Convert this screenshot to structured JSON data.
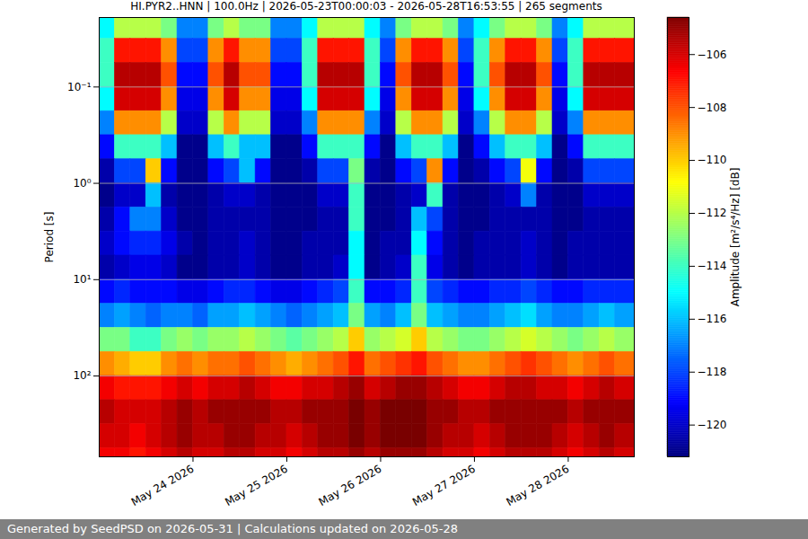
{
  "chart_data": {
    "type": "heatmap",
    "title": "HI.PYR2..HNN | 100.0Hz | 2026-05-23T00:00:03 - 2026-05-28T16:53:55 | 265 segments",
    "caption": "Generated by SeedPSD on 2026-05-31 | Calculations updated on 2026-05-28",
    "ylabel": "Period [s]",
    "zlabel": "Amplitude [m²/s⁴/Hz] [dB]",
    "log": "y",
    "grid": true,
    "xlim": [
      "2026-05-23T00:00:03Z",
      "2026-05-28T16:53:55Z"
    ],
    "xticks": [
      {
        "value": "2026-05-24T00:00Z",
        "label": "May 24 2026"
      },
      {
        "value": "2026-05-25T00:00Z",
        "label": "May 25 2026"
      },
      {
        "value": "2026-05-26T00:00Z",
        "label": "May 26 2026"
      },
      {
        "value": "2026-05-27T00:00Z",
        "label": "May 27 2026"
      },
      {
        "value": "2026-05-28T00:00Z",
        "label": "May 28 2026"
      }
    ],
    "ylim": [
      0.019,
      690
    ],
    "yticks": [
      {
        "value": 0.1,
        "label": "10⁻¹"
      },
      {
        "value": 1,
        "label": "10⁰"
      },
      {
        "value": 10,
        "label": "10¹"
      },
      {
        "value": 100,
        "label": "10²"
      }
    ],
    "zlim": [
      -121.2,
      -104.6
    ],
    "zticks": [
      -106,
      -108,
      -110,
      -112,
      -114,
      -116,
      -118,
      -120
    ],
    "x_edges": [
      "2026-05-23T00:00Z",
      "2026-05-23T04:00Z",
      "2026-05-23T08:00Z",
      "2026-05-23T12:00Z",
      "2026-05-23T16:00Z",
      "2026-05-23T20:00Z",
      "2026-05-24T00:00Z",
      "2026-05-24T04:00Z",
      "2026-05-24T08:00Z",
      "2026-05-24T12:00Z",
      "2026-05-24T16:00Z",
      "2026-05-24T20:00Z",
      "2026-05-25T00:00Z",
      "2026-05-25T04:00Z",
      "2026-05-25T08:00Z",
      "2026-05-25T12:00Z",
      "2026-05-25T16:00Z",
      "2026-05-25T20:00Z",
      "2026-05-26T00:00Z",
      "2026-05-26T04:00Z",
      "2026-05-26T08:00Z",
      "2026-05-26T12:00Z",
      "2026-05-26T16:00Z",
      "2026-05-26T20:00Z",
      "2026-05-27T00:00Z",
      "2026-05-27T04:00Z",
      "2026-05-27T08:00Z",
      "2026-05-27T12:00Z",
      "2026-05-27T16:00Z",
      "2026-05-27T20:00Z",
      "2026-05-28T00:00Z",
      "2026-05-28T04:00Z",
      "2026-05-28T08:00Z",
      "2026-05-28T12:00Z",
      "2026-05-28T16:53:55Z"
    ],
    "y_edges": [
      0.0178,
      0.0316,
      0.0562,
      0.1,
      0.178,
      0.316,
      0.562,
      1,
      1.78,
      3.16,
      5.62,
      10,
      17.8,
      31.6,
      56.2,
      100,
      178,
      316,
      562,
      1000
    ],
    "z": [
      [
        -115,
        -112,
        -112,
        -112,
        -113,
        -117,
        -117,
        -113,
        -112,
        -113,
        -113,
        -117,
        -117,
        -115,
        -112,
        -112,
        -112,
        -115,
        -117,
        -113,
        -112,
        -112,
        -113,
        -117,
        -115,
        -113,
        -112,
        -112,
        -113,
        -117,
        -115,
        -112,
        -112,
        -112
      ],
      [
        -114,
        -107,
        -107,
        -107,
        -109,
        -118,
        -118,
        -109,
        -107,
        -109,
        -109,
        -118,
        -118,
        -114,
        -107,
        -107,
        -107,
        -114,
        -118,
        -109,
        -107,
        -107,
        -109,
        -118,
        -114,
        -109,
        -107,
        -107,
        -109,
        -118,
        -114,
        -107,
        -107,
        -107
      ],
      [
        -114,
        -105.5,
        -105.5,
        -105.5,
        -108,
        -119,
        -119,
        -108,
        -105.5,
        -108,
        -108,
        -119,
        -119,
        -114,
        -105.5,
        -105.5,
        -105.5,
        -114,
        -119,
        -108,
        -105.5,
        -105.5,
        -108,
        -119,
        -114,
        -108,
        -105.5,
        -105.5,
        -108,
        -119,
        -114,
        -105.5,
        -105.5,
        -105.5
      ],
      [
        -115,
        -106,
        -106,
        -106,
        -109,
        -119.5,
        -119.5,
        -109,
        -106,
        -109,
        -109,
        -119.5,
        -119.5,
        -115,
        -106,
        -106,
        -106,
        -115,
        -119.5,
        -109,
        -106,
        -106,
        -109,
        -119.5,
        -115,
        -109,
        -106,
        -106,
        -109,
        -119.5,
        -115,
        -106,
        -106,
        -106
      ],
      [
        -117,
        -109,
        -109,
        -109,
        -112,
        -120,
        -120,
        -112,
        -109,
        -112,
        -112,
        -120,
        -120,
        -117,
        -109,
        -109,
        -109,
        -117,
        -120,
        -112,
        -109,
        -109,
        -112,
        -120,
        -117,
        -112,
        -109,
        -109,
        -112,
        -120,
        -117,
        -109,
        -109,
        -109
      ],
      [
        -119,
        -114,
        -114,
        -114,
        -116,
        -121,
        -121,
        -116,
        -114,
        -116,
        -116,
        -121,
        -121,
        -119,
        -114,
        -114,
        -114,
        -119,
        -121,
        -116,
        -114,
        -114,
        -116,
        -121,
        -119,
        -116,
        -114,
        -114,
        -116,
        -121,
        -119,
        -114,
        -114,
        -114
      ],
      [
        -120.5,
        -118,
        -118,
        -110,
        -119,
        -121,
        -121,
        -119,
        -118,
        -116,
        -119,
        -121,
        -121,
        -120.5,
        -118,
        -118,
        -113,
        -120.5,
        -121,
        -119,
        -118,
        -109,
        -119,
        -121,
        -120.5,
        -119,
        -118,
        -111,
        -119,
        -121,
        -120.5,
        -118,
        -118,
        -118
      ],
      [
        -121,
        -120,
        -120,
        -116,
        -120.5,
        -121,
        -121,
        -120.5,
        -120,
        -120,
        -120.5,
        -121,
        -121,
        -121,
        -120,
        -120,
        -114,
        -121,
        -121,
        -120.5,
        -120,
        -114,
        -120.5,
        -121,
        -121,
        -120.5,
        -120,
        -117,
        -120.5,
        -121,
        -121,
        -120,
        -120,
        -120
      ],
      [
        -120.5,
        -119,
        -117,
        -117,
        -120,
        -121,
        -121,
        -120.5,
        -120.5,
        -120.5,
        -120.5,
        -121,
        -121,
        -121,
        -120.5,
        -120.5,
        -114,
        -121,
        -121,
        -120.5,
        -116,
        -118,
        -120.5,
        -121,
        -121,
        -120.5,
        -120.5,
        -120.5,
        -120.5,
        -121,
        -121,
        -120.5,
        -120.5,
        -120.5
      ],
      [
        -120,
        -119,
        -118.5,
        -118.5,
        -119.5,
        -120.5,
        -121,
        -120.5,
        -120.5,
        -120,
        -120.5,
        -121,
        -121,
        -120.5,
        -120.5,
        -120.5,
        -115,
        -121,
        -120.5,
        -120.5,
        -115,
        -119,
        -120.5,
        -121,
        -120.5,
        -120.5,
        -120.5,
        -120,
        -120.5,
        -121,
        -120.5,
        -120.5,
        -120.5,
        -120.5
      ],
      [
        -120.5,
        -120,
        -119.5,
        -119.5,
        -120,
        -121,
        -121,
        -120.5,
        -120.5,
        -120,
        -120.5,
        -121,
        -121,
        -120.5,
        -120.5,
        -120,
        -115,
        -121,
        -120.5,
        -120,
        -114,
        -119.5,
        -120.5,
        -121,
        -120.5,
        -120.5,
        -120.5,
        -120,
        -120.5,
        -121,
        -120.5,
        -120.5,
        -120.5,
        -120.5
      ],
      [
        -119,
        -118.5,
        -119,
        -119,
        -119,
        -119.5,
        -119.5,
        -119,
        -118.5,
        -118.5,
        -119,
        -119.5,
        -119.5,
        -119,
        -118.5,
        -118,
        -114,
        -119,
        -119,
        -118.5,
        -114,
        -118,
        -118.5,
        -119,
        -119,
        -118.5,
        -118.5,
        -118,
        -118.5,
        -119,
        -119,
        -118.5,
        -118.5,
        -118.5
      ],
      [
        -117,
        -116.5,
        -117,
        -117.5,
        -117,
        -117,
        -117.5,
        -116.5,
        -116.5,
        -116,
        -116.5,
        -117,
        -117.5,
        -117,
        -116.5,
        -116,
        -113,
        -116.5,
        -117,
        -116,
        -113,
        -116,
        -116.5,
        -117,
        -117,
        -116.5,
        -116,
        -115.5,
        -116.5,
        -117,
        -117,
        -116.5,
        -116,
        -116.5
      ],
      [
        -113,
        -113,
        -114,
        -114,
        -113,
        -112.5,
        -113,
        -112.5,
        -112.5,
        -112,
        -112.5,
        -113,
        -113.5,
        -113,
        -112.5,
        -112,
        -110,
        -112.5,
        -112,
        -111.5,
        -110,
        -112,
        -112.5,
        -113,
        -113,
        -112.5,
        -112,
        -111.5,
        -112,
        -112.5,
        -113,
        -112.5,
        -112,
        -112.5
      ],
      [
        -109,
        -109.5,
        -110,
        -110,
        -109,
        -108.5,
        -109,
        -108.5,
        -108.5,
        -108,
        -108.5,
        -109,
        -109.5,
        -109,
        -108.5,
        -108,
        -107,
        -108.5,
        -108,
        -107.5,
        -107,
        -108,
        -108.5,
        -109,
        -109,
        -108.5,
        -108,
        -107.5,
        -108,
        -108.5,
        -109,
        -108.5,
        -108,
        -108.5
      ],
      [
        -106.5,
        -107,
        -107,
        -107,
        -106.5,
        -106,
        -106.5,
        -106,
        -106,
        -105.5,
        -106,
        -106.5,
        -106.5,
        -106,
        -106,
        -105.5,
        -105,
        -106,
        -105.5,
        -105,
        -105,
        -105.5,
        -106,
        -106.5,
        -106.5,
        -106,
        -105.5,
        -105.5,
        -106,
        -106,
        -106.5,
        -106,
        -105.5,
        -106
      ],
      [
        -105.5,
        -106,
        -106,
        -106,
        -105.5,
        -105,
        -105.5,
        -105,
        -105,
        -105,
        -105,
        -105.5,
        -105.5,
        -105,
        -105,
        -105,
        -104.5,
        -105,
        -104.5,
        -104.5,
        -104.5,
        -105,
        -105,
        -105.5,
        -105.5,
        -105,
        -105,
        -105,
        -105,
        -105,
        -105.5,
        -105,
        -105,
        -105
      ],
      [
        -106,
        -106,
        -106.5,
        -106,
        -105.5,
        -105,
        -105.5,
        -105.5,
        -105,
        -105,
        -105.5,
        -105.5,
        -106,
        -105.5,
        -105,
        -105,
        -104.5,
        -105,
        -104.5,
        -104.5,
        -104.5,
        -105,
        -105.5,
        -105.5,
        -106,
        -105.5,
        -105,
        -105,
        -105,
        -105.5,
        -106,
        -105.5,
        -105,
        -105.5
      ],
      [
        -106.5,
        -106.5,
        -107,
        -106.5,
        -106,
        -105.5,
        -106,
        -106,
        -105.5,
        -105.5,
        -106,
        -106,
        -106.5,
        -106,
        -105.5,
        -105.5,
        -105,
        -105.5,
        -105,
        -105,
        -105,
        -105.5,
        -106,
        -106,
        -106.5,
        -106,
        -105.5,
        -105.5,
        -105.5,
        -106,
        -106.5,
        -106,
        -105.5,
        -106
      ]
    ]
  }
}
